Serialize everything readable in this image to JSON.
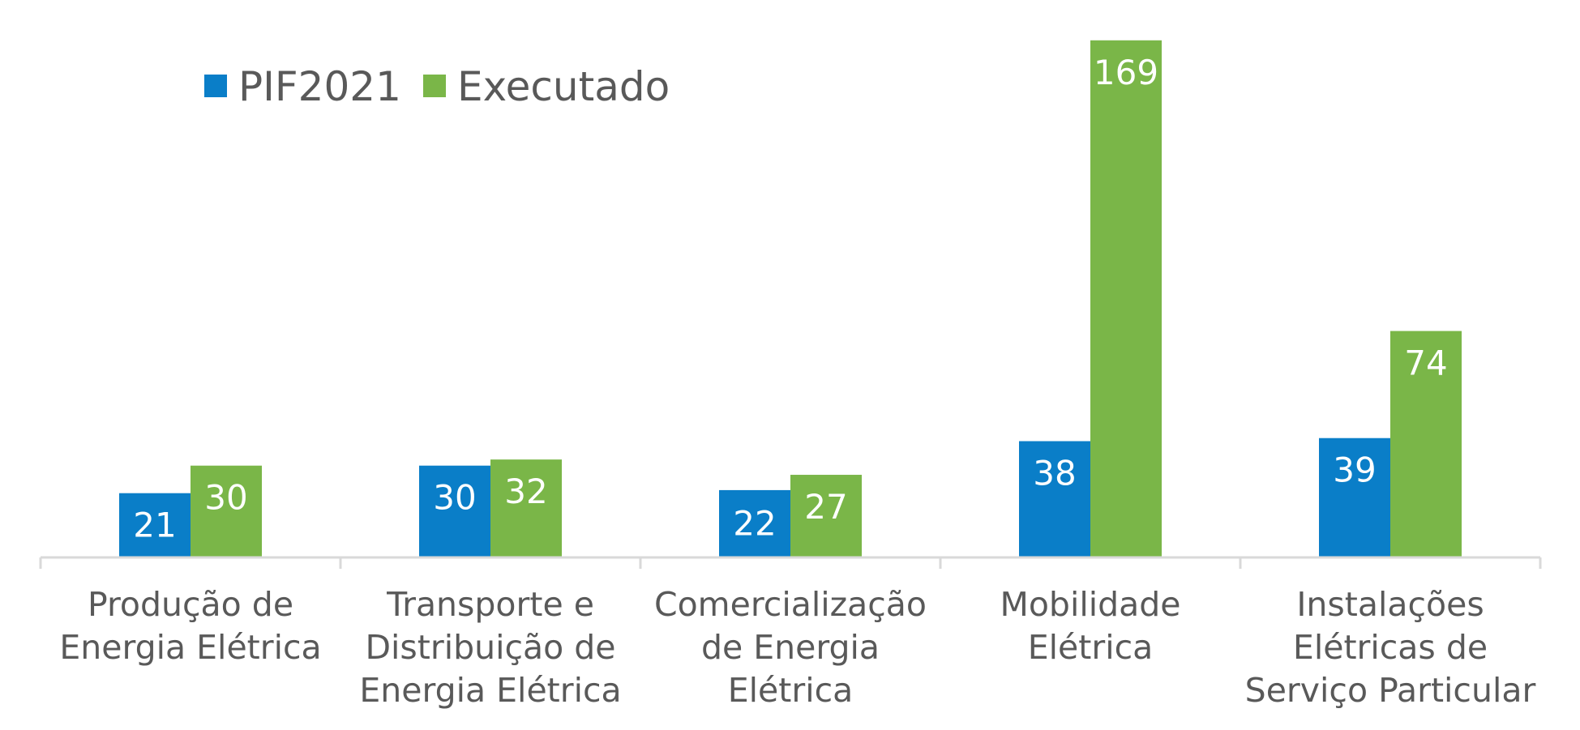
{
  "chart_data": {
    "type": "bar",
    "categories": [
      [
        "Produção de",
        "Energia Elétrica"
      ],
      [
        "Transporte e",
        "Distribuição de",
        "Energia Elétrica"
      ],
      [
        "Comercialização",
        "de Energia",
        "Elétrica"
      ],
      [
        "Mobilidade",
        "Elétrica"
      ],
      [
        "Instalações",
        "Elétricas de",
        "Serviço Particular"
      ]
    ],
    "series": [
      {
        "name": "PIF2021",
        "values": [
          21,
          30,
          22,
          38,
          39
        ],
        "color": "#0a7ec8"
      },
      {
        "name": "Executado",
        "values": [
          30,
          32,
          27,
          169,
          74
        ],
        "color": "#7ab648"
      }
    ],
    "ylim": [
      0,
      170
    ],
    "grid": false,
    "legend": "top-left",
    "data_labels": true,
    "xlabel": "",
    "ylabel": ""
  }
}
